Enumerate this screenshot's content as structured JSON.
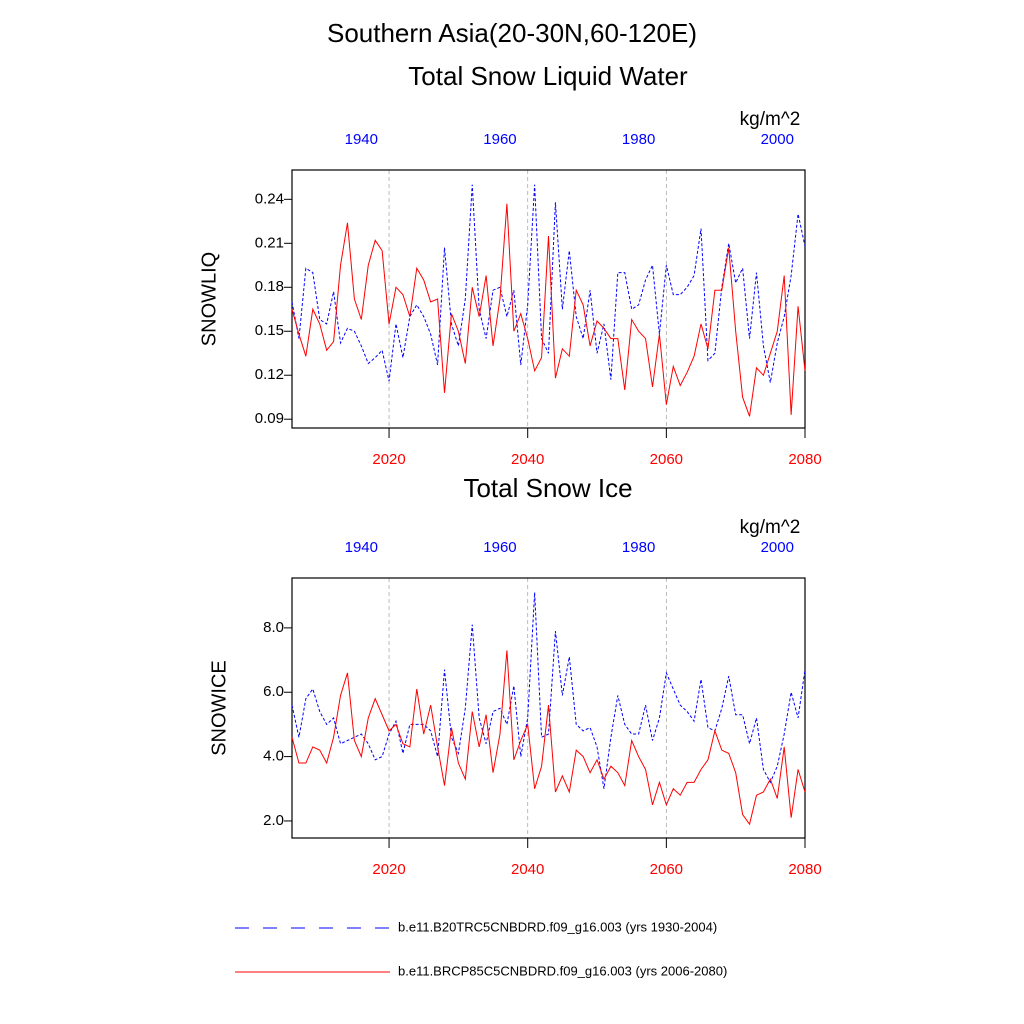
{
  "title": "Southern Asia(20-30N,60-120E)",
  "chart_data": [
    {
      "type": "line",
      "title": "Total Snow Liquid Water",
      "units": "kg/m^2",
      "ylabel": "SNOWLIQ",
      "xlim": [
        2006,
        2080
      ],
      "xticks": [
        2020,
        2040,
        2060,
        2080
      ],
      "xtick_color": "#ff0000",
      "x2lim": [
        1930,
        2004
      ],
      "x2ticks": [
        1940,
        1960,
        1980,
        2000
      ],
      "x2tick_color": "#0000ff",
      "ylim": [
        0.084,
        0.26
      ],
      "yticks": [
        0.09,
        0.12,
        0.15,
        0.18,
        0.21,
        0.24
      ],
      "grid": true,
      "series": [
        {
          "name": "b.e11.B20TRC5CNBDRD.f09_g16.003 (yrs 1930-2004)",
          "color": "#0000ff",
          "dashed": true,
          "axis": "x2",
          "x": [
            1930,
            1931,
            1932,
            1933,
            1934,
            1935,
            1936,
            1937,
            1938,
            1939,
            1940,
            1941,
            1942,
            1943,
            1944,
            1945,
            1946,
            1947,
            1948,
            1949,
            1950,
            1951,
            1952,
            1953,
            1954,
            1955,
            1956,
            1957,
            1958,
            1959,
            1960,
            1961,
            1962,
            1963,
            1964,
            1965,
            1966,
            1967,
            1968,
            1969,
            1970,
            1971,
            1972,
            1973,
            1974,
            1975,
            1976,
            1977,
            1978,
            1979,
            1980,
            1981,
            1982,
            1983,
            1984,
            1985,
            1986,
            1987,
            1988,
            1989,
            1990,
            1991,
            1992,
            1993,
            1994,
            1995,
            1996,
            1997,
            1998,
            1999,
            2000,
            2001,
            2002,
            2003,
            2004
          ],
          "values": [
            0.17,
            0.145,
            0.193,
            0.19,
            0.158,
            0.155,
            0.177,
            0.142,
            0.152,
            0.15,
            0.14,
            0.128,
            0.132,
            0.137,
            0.116,
            0.155,
            0.132,
            0.16,
            0.168,
            0.16,
            0.148,
            0.127,
            0.207,
            0.155,
            0.14,
            0.172,
            0.25,
            0.165,
            0.145,
            0.178,
            0.18,
            0.16,
            0.178,
            0.127,
            0.168,
            0.25,
            0.145,
            0.135,
            0.238,
            0.165,
            0.205,
            0.16,
            0.145,
            0.178,
            0.135,
            0.155,
            0.117,
            0.19,
            0.19,
            0.165,
            0.168,
            0.185,
            0.195,
            0.148,
            0.195,
            0.175,
            0.175,
            0.18,
            0.188,
            0.22,
            0.13,
            0.135,
            0.18,
            0.21,
            0.183,
            0.193,
            0.145,
            0.19,
            0.14,
            0.115,
            0.142,
            0.16,
            0.188,
            0.23,
            0.208
          ]
        },
        {
          "name": "b.e11.BRCP85C5CNBDRD.f09_g16.003 (yrs 2006-2080)",
          "color": "#ff0000",
          "dashed": false,
          "axis": "x",
          "x": [
            2006,
            2007,
            2008,
            2009,
            2010,
            2011,
            2012,
            2013,
            2014,
            2015,
            2016,
            2017,
            2018,
            2019,
            2020,
            2021,
            2022,
            2023,
            2024,
            2025,
            2026,
            2027,
            2028,
            2029,
            2030,
            2031,
            2032,
            2033,
            2034,
            2035,
            2036,
            2037,
            2038,
            2039,
            2040,
            2041,
            2042,
            2043,
            2044,
            2045,
            2046,
            2047,
            2048,
            2049,
            2050,
            2051,
            2052,
            2053,
            2054,
            2055,
            2056,
            2057,
            2058,
            2059,
            2060,
            2061,
            2062,
            2063,
            2064,
            2065,
            2066,
            2067,
            2068,
            2069,
            2070,
            2071,
            2072,
            2073,
            2074,
            2075,
            2076,
            2077,
            2078,
            2079,
            2080
          ],
          "values": [
            0.165,
            0.148,
            0.133,
            0.165,
            0.155,
            0.137,
            0.143,
            0.195,
            0.224,
            0.172,
            0.158,
            0.195,
            0.212,
            0.205,
            0.155,
            0.18,
            0.175,
            0.16,
            0.193,
            0.185,
            0.17,
            0.172,
            0.108,
            0.162,
            0.15,
            0.128,
            0.18,
            0.16,
            0.188,
            0.14,
            0.172,
            0.237,
            0.15,
            0.162,
            0.145,
            0.123,
            0.132,
            0.215,
            0.118,
            0.138,
            0.133,
            0.178,
            0.168,
            0.14,
            0.157,
            0.152,
            0.145,
            0.145,
            0.11,
            0.158,
            0.15,
            0.145,
            0.112,
            0.148,
            0.1,
            0.126,
            0.113,
            0.122,
            0.133,
            0.155,
            0.138,
            0.178,
            0.178,
            0.207,
            0.15,
            0.105,
            0.092,
            0.125,
            0.12,
            0.135,
            0.15,
            0.188,
            0.093,
            0.167,
            0.123
          ]
        }
      ]
    },
    {
      "type": "line",
      "title": "Total Snow Ice",
      "units": "kg/m^2",
      "ylabel": "SNOWICE",
      "xlim": [
        2006,
        2080
      ],
      "xticks": [
        2020,
        2040,
        2060,
        2080
      ],
      "xtick_color": "#ff0000",
      "x2lim": [
        1930,
        2004
      ],
      "x2ticks": [
        1940,
        1960,
        1980,
        2000
      ],
      "x2tick_color": "#0000ff",
      "ylim": [
        1.47,
        9.55
      ],
      "yticks": [
        {
          "value": 2,
          "label": "2.0"
        },
        {
          "value": 4,
          "label": "4.0"
        },
        {
          "value": 6,
          "label": "6.0"
        },
        {
          "value": 8,
          "label": "8.0"
        }
      ],
      "grid": true,
      "series": [
        {
          "color": "#0000ff",
          "dashed": true,
          "axis": "x2",
          "x": [
            1930,
            1931,
            1932,
            1933,
            1934,
            1935,
            1936,
            1937,
            1938,
            1939,
            1940,
            1941,
            1942,
            1943,
            1944,
            1945,
            1946,
            1947,
            1948,
            1949,
            1950,
            1951,
            1952,
            1953,
            1954,
            1955,
            1956,
            1957,
            1958,
            1959,
            1960,
            1961,
            1962,
            1963,
            1964,
            1965,
            1966,
            1967,
            1968,
            1969,
            1970,
            1971,
            1972,
            1973,
            1974,
            1975,
            1976,
            1977,
            1978,
            1979,
            1980,
            1981,
            1982,
            1983,
            1984,
            1985,
            1986,
            1987,
            1988,
            1989,
            1990,
            1991,
            1992,
            1993,
            1994,
            1995,
            1996,
            1997,
            1998,
            1999,
            2000,
            2001,
            2002,
            2003,
            2004
          ],
          "values": [
            5.6,
            4.6,
            5.8,
            6.1,
            5.4,
            5.0,
            5.2,
            4.4,
            4.5,
            4.6,
            4.7,
            4.4,
            3.9,
            4.0,
            4.7,
            5.1,
            4.1,
            5.0,
            5.0,
            5.0,
            4.8,
            4.0,
            6.7,
            4.6,
            4.1,
            5.5,
            8.1,
            5.2,
            4.4,
            5.4,
            5.5,
            5.0,
            6.2,
            4.0,
            5.2,
            9.1,
            4.6,
            4.7,
            7.9,
            5.9,
            7.1,
            5.0,
            4.8,
            4.9,
            4.3,
            3.0,
            4.6,
            5.9,
            5.0,
            4.7,
            4.7,
            5.6,
            4.5,
            5.2,
            6.6,
            6.1,
            5.6,
            5.4,
            5.1,
            6.4,
            4.9,
            4.8,
            5.5,
            6.5,
            5.3,
            5.3,
            4.4,
            5.2,
            3.6,
            3.2,
            3.7,
            4.7,
            6.0,
            5.2,
            6.7
          ]
        },
        {
          "color": "#ff0000",
          "dashed": false,
          "axis": "x",
          "x": [
            2006,
            2007,
            2008,
            2009,
            2010,
            2011,
            2012,
            2013,
            2014,
            2015,
            2016,
            2017,
            2018,
            2019,
            2020,
            2021,
            2022,
            2023,
            2024,
            2025,
            2026,
            2027,
            2028,
            2029,
            2030,
            2031,
            2032,
            2033,
            2034,
            2035,
            2036,
            2037,
            2038,
            2039,
            2040,
            2041,
            2042,
            2043,
            2044,
            2045,
            2046,
            2047,
            2048,
            2049,
            2050,
            2051,
            2052,
            2053,
            2054,
            2055,
            2056,
            2057,
            2058,
            2059,
            2060,
            2061,
            2062,
            2063,
            2064,
            2065,
            2066,
            2067,
            2068,
            2069,
            2070,
            2071,
            2072,
            2073,
            2074,
            2075,
            2076,
            2077,
            2078,
            2079,
            2080
          ],
          "values": [
            4.6,
            3.8,
            3.8,
            4.3,
            4.2,
            3.8,
            4.6,
            5.9,
            6.6,
            4.5,
            4.0,
            5.2,
            5.8,
            5.3,
            4.8,
            5.0,
            4.4,
            4.3,
            6.1,
            4.7,
            5.6,
            4.3,
            3.1,
            4.9,
            3.8,
            3.3,
            5.4,
            4.3,
            5.3,
            3.5,
            4.7,
            7.3,
            3.9,
            4.5,
            5.0,
            3.0,
            3.7,
            5.6,
            2.9,
            3.4,
            2.9,
            4.2,
            4.0,
            3.5,
            3.9,
            3.3,
            3.7,
            3.5,
            3.1,
            4.5,
            4.0,
            3.6,
            2.5,
            3.2,
            2.5,
            3.0,
            2.8,
            3.2,
            3.2,
            3.6,
            3.9,
            4.8,
            4.2,
            4.1,
            3.5,
            2.2,
            1.9,
            2.8,
            2.9,
            3.3,
            2.7,
            4.3,
            2.1,
            3.6,
            2.9
          ]
        }
      ]
    }
  ]
}
